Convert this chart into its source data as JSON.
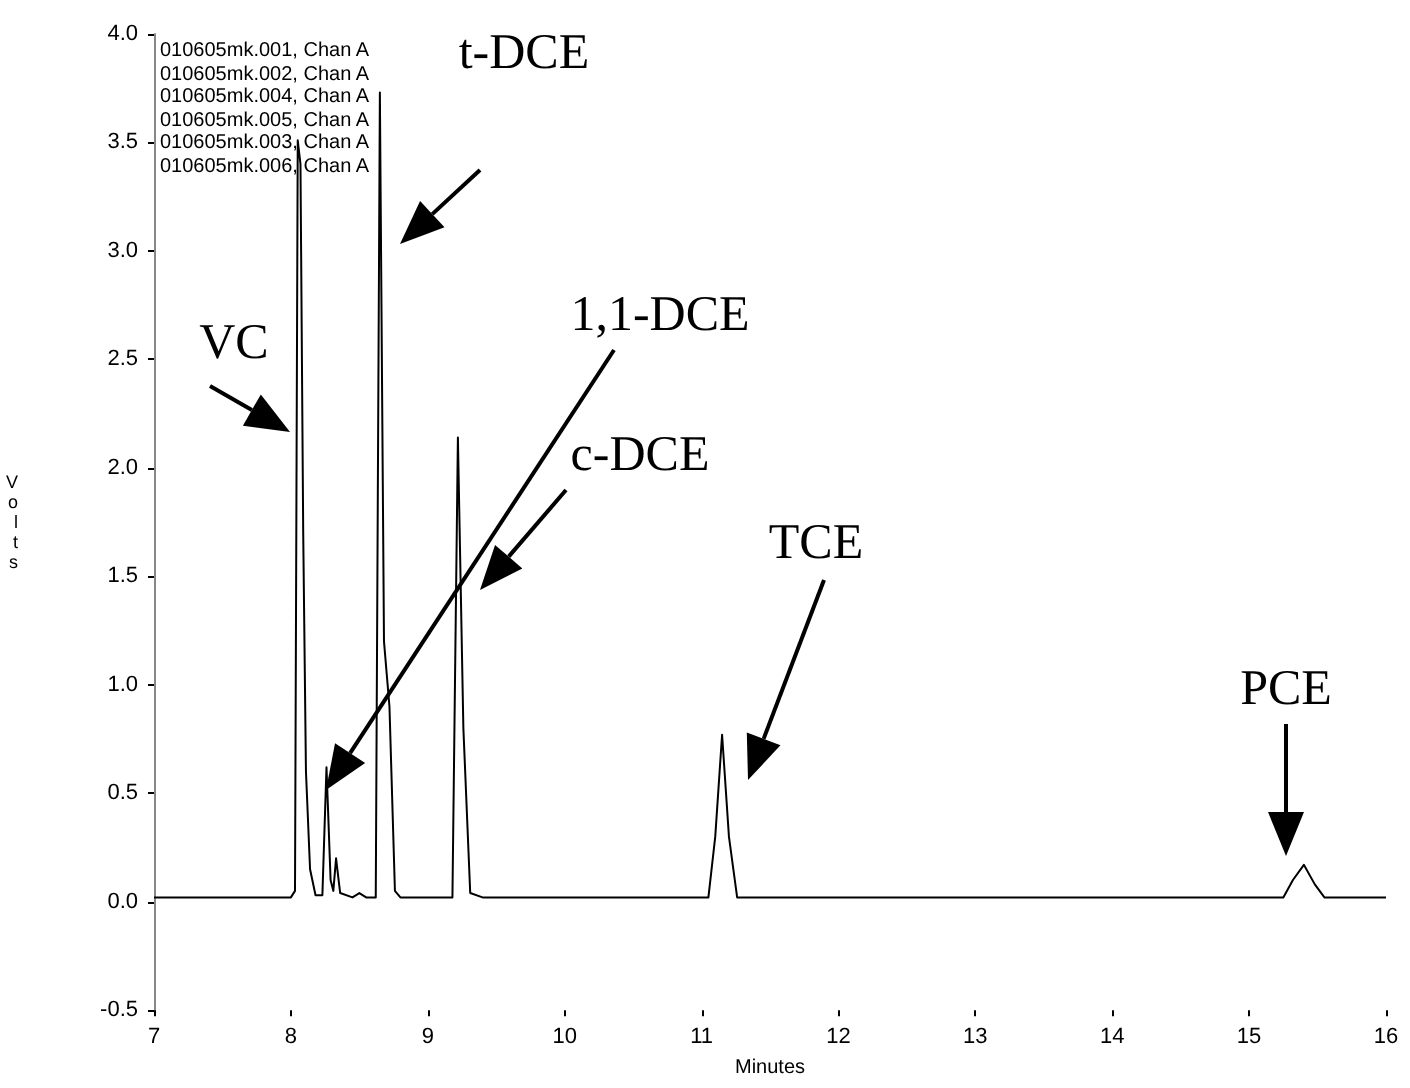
{
  "chart_data": {
    "type": "line",
    "xlabel": "Minutes",
    "ylabel": "Volts",
    "x": [
      7,
      8.0,
      8.03,
      8.05,
      8.07,
      8.09,
      8.11,
      8.14,
      8.18,
      8.23,
      8.26,
      8.29,
      8.31,
      8.33,
      8.36,
      8.45,
      8.5,
      8.55,
      8.62,
      8.65,
      8.68,
      8.72,
      8.76,
      8.8,
      9.18,
      9.22,
      9.26,
      9.31,
      9.4,
      11.05,
      11.1,
      11.15,
      11.2,
      11.26,
      15.25,
      15.32,
      15.4,
      15.48,
      15.55,
      16
    ],
    "series": [
      {
        "color": "#000000",
        "values": [
          0.02,
          0.02,
          0.05,
          3.51,
          3.4,
          1.7,
          0.6,
          0.15,
          0.03,
          0.03,
          0.62,
          0.1,
          0.05,
          0.2,
          0.04,
          0.02,
          0.04,
          0.02,
          0.02,
          3.73,
          1.2,
          0.9,
          0.05,
          0.02,
          0.02,
          2.14,
          0.8,
          0.04,
          0.02,
          0.02,
          0.3,
          0.77,
          0.3,
          0.02,
          0.02,
          0.1,
          0.17,
          0.08,
          0.02,
          0.02
        ]
      }
    ],
    "xlim": [
      7,
      16
    ],
    "xticks": [
      7,
      8,
      9,
      10,
      11,
      12,
      13,
      14,
      15,
      16
    ],
    "ylim": [
      -0.5,
      4.0
    ],
    "yticks": [
      {
        "value": -0.5,
        "label": "-0.5"
      },
      {
        "value": 0,
        "label": "0.0"
      },
      {
        "value": 0.5,
        "label": "0.5"
      },
      {
        "value": 1,
        "label": "1.0"
      },
      {
        "value": 1.5,
        "label": "1.5"
      },
      {
        "value": 2,
        "label": "2.0"
      },
      {
        "value": 2.5,
        "label": "2.5"
      },
      {
        "value": 3,
        "label": "3.0"
      },
      {
        "value": 3.5,
        "label": "3.5"
      },
      {
        "value": 4,
        "label": "4.0"
      }
    ],
    "annotations": [
      "010605mk.001, Chan A",
      "010605mk.002, Chan A",
      "010605mk.004, Chan A",
      "010605mk.005, Chan A",
      "010605mk.003, Chan A",
      "010605mk.006, Chan A",
      "VC",
      "t-DCE",
      "1,1-DCE",
      "c-DCE",
      "TCE",
      "PCE"
    ]
  }
}
